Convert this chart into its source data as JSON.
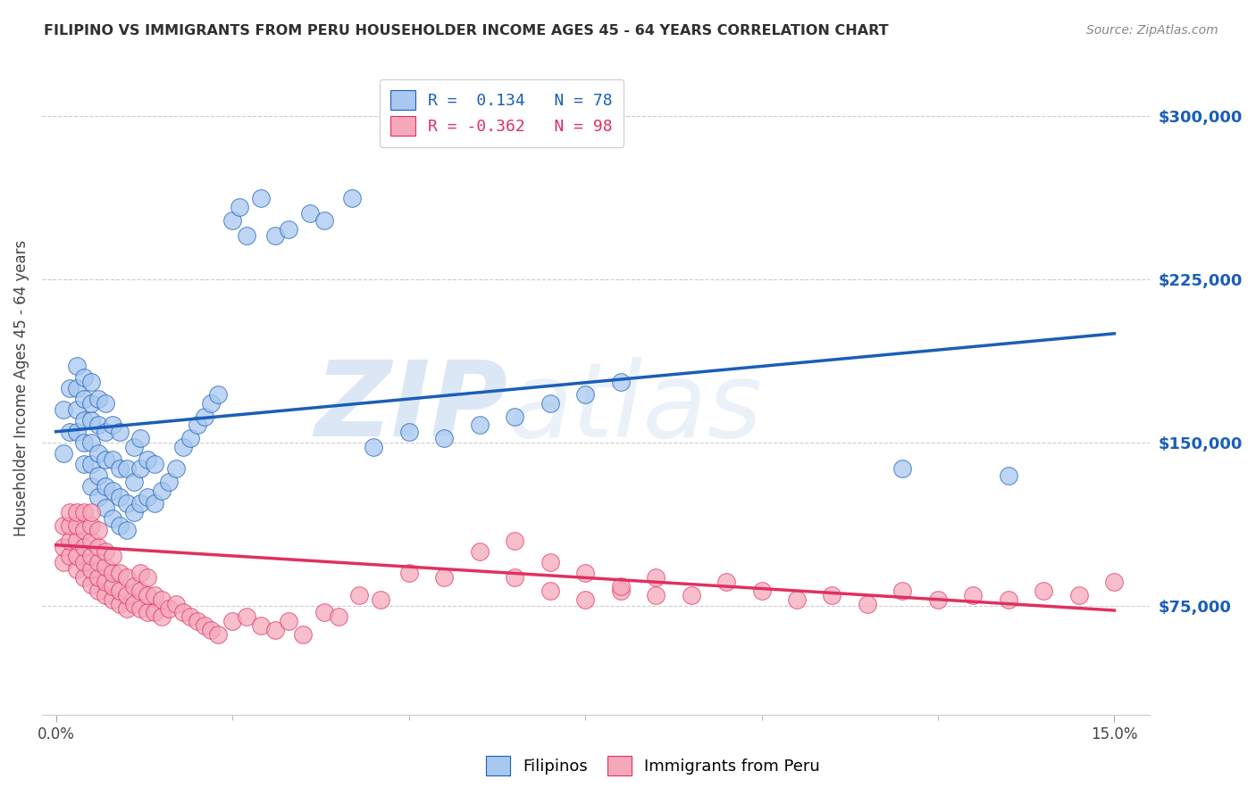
{
  "title": "FILIPINO VS IMMIGRANTS FROM PERU HOUSEHOLDER INCOME AGES 45 - 64 YEARS CORRELATION CHART",
  "source": "Source: ZipAtlas.com",
  "ylabel": "Householder Income Ages 45 - 64 years",
  "y_tick_labels": [
    "$75,000",
    "$150,000",
    "$225,000",
    "$300,000"
  ],
  "y_tick_values": [
    75000,
    150000,
    225000,
    300000
  ],
  "ylim": [
    25000,
    325000
  ],
  "xlim": [
    -0.002,
    0.155
  ],
  "legend_label1": "Filipinos",
  "legend_label2": "Immigrants from Peru",
  "r1": 0.134,
  "n1": 78,
  "r2": -0.362,
  "n2": 98,
  "color1": "#a8c8f0",
  "color2": "#f5a8bc",
  "line_color1": "#1a5eb8",
  "line_color2": "#e03060",
  "watermark_zip": "ZIP",
  "watermark_atlas": "atlas",
  "background_color": "#ffffff",
  "grid_color": "#cccccc",
  "title_color": "#303030",
  "source_color": "#888888",
  "blue_line_x0": 0.0,
  "blue_line_y0": 155000,
  "blue_line_x1": 0.15,
  "blue_line_y1": 200000,
  "pink_line_x0": 0.0,
  "pink_line_y0": 103000,
  "pink_line_x1": 0.15,
  "pink_line_y1": 73000,
  "scatter1_x": [
    0.001,
    0.001,
    0.002,
    0.002,
    0.003,
    0.003,
    0.003,
    0.003,
    0.004,
    0.004,
    0.004,
    0.004,
    0.004,
    0.005,
    0.005,
    0.005,
    0.005,
    0.005,
    0.005,
    0.006,
    0.006,
    0.006,
    0.006,
    0.006,
    0.007,
    0.007,
    0.007,
    0.007,
    0.007,
    0.008,
    0.008,
    0.008,
    0.008,
    0.009,
    0.009,
    0.009,
    0.009,
    0.01,
    0.01,
    0.01,
    0.011,
    0.011,
    0.011,
    0.012,
    0.012,
    0.012,
    0.013,
    0.013,
    0.014,
    0.014,
    0.015,
    0.016,
    0.017,
    0.018,
    0.019,
    0.02,
    0.021,
    0.022,
    0.023,
    0.025,
    0.026,
    0.027,
    0.029,
    0.031,
    0.033,
    0.036,
    0.038,
    0.042,
    0.045,
    0.05,
    0.055,
    0.06,
    0.065,
    0.07,
    0.075,
    0.08,
    0.12,
    0.135
  ],
  "scatter1_y": [
    145000,
    165000,
    155000,
    175000,
    155000,
    165000,
    175000,
    185000,
    140000,
    150000,
    160000,
    170000,
    180000,
    130000,
    140000,
    150000,
    160000,
    168000,
    178000,
    125000,
    135000,
    145000,
    158000,
    170000,
    120000,
    130000,
    142000,
    155000,
    168000,
    115000,
    128000,
    142000,
    158000,
    112000,
    125000,
    138000,
    155000,
    110000,
    122000,
    138000,
    118000,
    132000,
    148000,
    122000,
    138000,
    152000,
    125000,
    142000,
    122000,
    140000,
    128000,
    132000,
    138000,
    148000,
    152000,
    158000,
    162000,
    168000,
    172000,
    252000,
    258000,
    245000,
    262000,
    245000,
    248000,
    255000,
    252000,
    262000,
    148000,
    155000,
    152000,
    158000,
    162000,
    168000,
    172000,
    178000,
    138000,
    135000
  ],
  "scatter2_x": [
    0.001,
    0.001,
    0.001,
    0.002,
    0.002,
    0.002,
    0.002,
    0.003,
    0.003,
    0.003,
    0.003,
    0.003,
    0.004,
    0.004,
    0.004,
    0.004,
    0.004,
    0.005,
    0.005,
    0.005,
    0.005,
    0.005,
    0.005,
    0.006,
    0.006,
    0.006,
    0.006,
    0.006,
    0.007,
    0.007,
    0.007,
    0.007,
    0.008,
    0.008,
    0.008,
    0.008,
    0.009,
    0.009,
    0.009,
    0.01,
    0.01,
    0.01,
    0.011,
    0.011,
    0.012,
    0.012,
    0.012,
    0.013,
    0.013,
    0.013,
    0.014,
    0.014,
    0.015,
    0.015,
    0.016,
    0.017,
    0.018,
    0.019,
    0.02,
    0.021,
    0.022,
    0.023,
    0.025,
    0.027,
    0.029,
    0.031,
    0.033,
    0.035,
    0.038,
    0.04,
    0.043,
    0.046,
    0.05,
    0.055,
    0.06,
    0.065,
    0.07,
    0.075,
    0.08,
    0.085,
    0.09,
    0.095,
    0.1,
    0.105,
    0.11,
    0.115,
    0.12,
    0.125,
    0.13,
    0.135,
    0.14,
    0.145,
    0.15,
    0.065,
    0.07,
    0.075,
    0.08,
    0.085
  ],
  "scatter2_y": [
    95000,
    102000,
    112000,
    98000,
    105000,
    112000,
    118000,
    92000,
    98000,
    105000,
    112000,
    118000,
    88000,
    95000,
    102000,
    110000,
    118000,
    85000,
    92000,
    98000,
    105000,
    112000,
    118000,
    82000,
    88000,
    95000,
    102000,
    110000,
    80000,
    86000,
    93000,
    100000,
    78000,
    84000,
    90000,
    98000,
    76000,
    82000,
    90000,
    74000,
    80000,
    88000,
    76000,
    84000,
    74000,
    82000,
    90000,
    72000,
    80000,
    88000,
    72000,
    80000,
    70000,
    78000,
    74000,
    76000,
    72000,
    70000,
    68000,
    66000,
    64000,
    62000,
    68000,
    70000,
    66000,
    64000,
    68000,
    62000,
    72000,
    70000,
    80000,
    78000,
    90000,
    88000,
    100000,
    105000,
    95000,
    90000,
    82000,
    88000,
    80000,
    86000,
    82000,
    78000,
    80000,
    76000,
    82000,
    78000,
    80000,
    78000,
    82000,
    80000,
    86000,
    88000,
    82000,
    78000,
    84000,
    80000
  ]
}
